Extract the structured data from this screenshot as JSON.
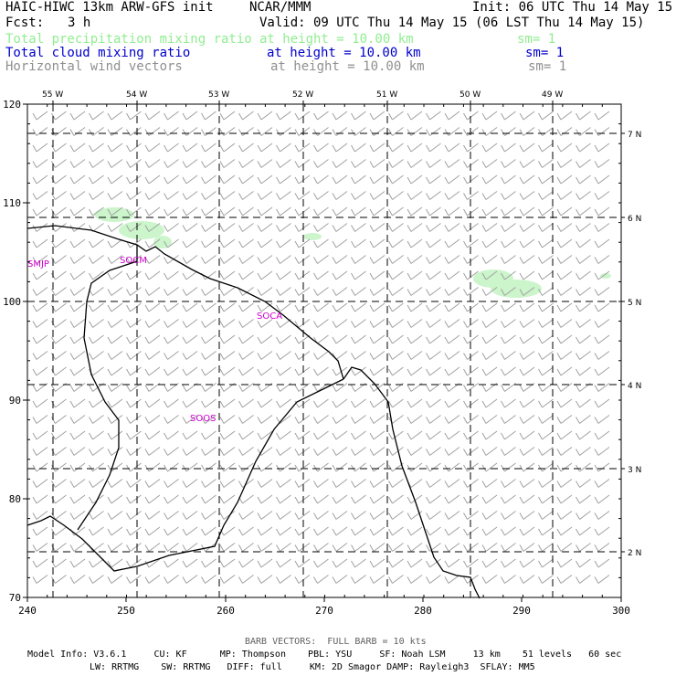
{
  "header": {
    "model": "HAIC-HIWC 13km ARW-GFS init",
    "org": "NCAR/MMM",
    "init": "Init: 06 UTC Thu 14 May 15",
    "fcst_label": "Fcst:",
    "fcst_value": "3 h",
    "valid": "Valid: 09 UTC Thu 14 May 15 (06 LST Thu 14 May 15)",
    "fields": [
      {
        "name": "Total precipitation mixing ratio",
        "height": "at height = 10.00 km",
        "sm": "sm= 1",
        "color": "#90ee90"
      },
      {
        "name": "Total cloud mixing ratio",
        "height": "at height = 10.00 km",
        "sm": "sm= 1",
        "color": "#0000cc"
      },
      {
        "name": "Horizontal wind vectors",
        "height": "at height = 10.00 km",
        "sm": "sm= 1",
        "color": "#909090"
      }
    ]
  },
  "map": {
    "x_ticks": [
      "240",
      "250",
      "260",
      "270",
      "280",
      "290",
      "300"
    ],
    "y_ticks": [
      "120",
      "110",
      "100",
      "90",
      "80",
      "70"
    ],
    "lon_labels": [
      "55 W",
      "54 W",
      "53 W",
      "52 W",
      "51 W",
      "50 W",
      "49 W"
    ],
    "lat_labels": [
      "7 N",
      "6 N",
      "5 N",
      "4 N",
      "3 N",
      "2 N"
    ],
    "stations": [
      "SMJP",
      "SOCM",
      "SOCA",
      "SOOS"
    ],
    "station_color": "#cc00cc",
    "precip_color": "#ccf5cc",
    "barb_color": "#a0a0a0"
  },
  "footer": {
    "barb_note": "BARB VECTORS:  FULL BARB = 10 kts",
    "line1": "Model Info: V3.6.1     CU: KF      MP: Thompson    PBL: YSU     SF: Noah LSM     13 km    51 levels   60 sec",
    "line2": "LW: RRTMG    SW: RRTMG   DIFF: full     KM: 2D Smagor DAMP: Rayleigh3  SFLAY: MM5"
  }
}
